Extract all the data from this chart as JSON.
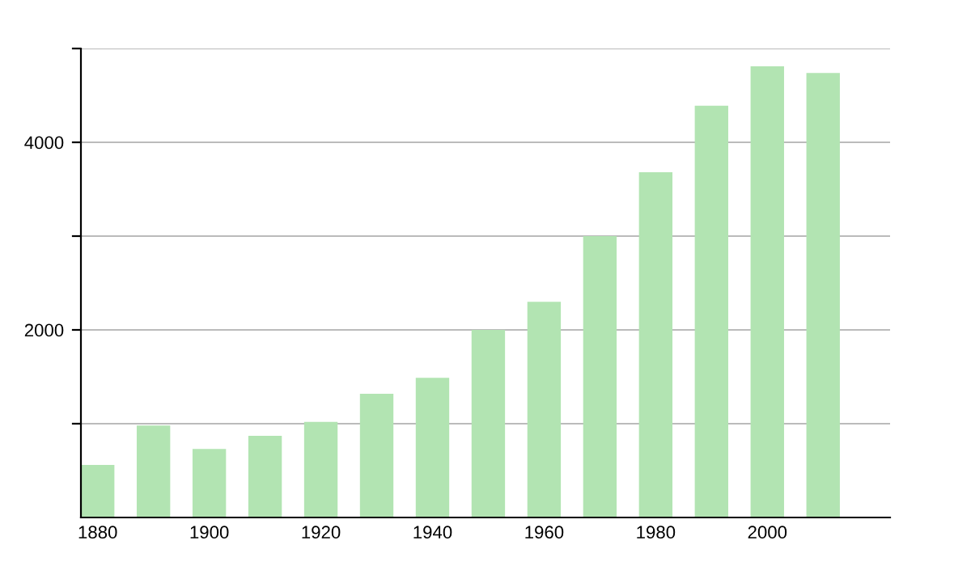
{
  "chart_data": {
    "type": "bar",
    "x": [
      1880,
      1890,
      1900,
      1910,
      1920,
      1930,
      1940,
      1950,
      1960,
      1970,
      1980,
      1990,
      2000,
      2010
    ],
    "values": [
      560,
      980,
      730,
      870,
      1020,
      1320,
      1490,
      2000,
      2300,
      3000,
      3680,
      4390,
      4810,
      4740
    ],
    "color": "#b2e4b2",
    "xlim": [
      1877,
      2022
    ],
    "xticks": [
      1880,
      1900,
      1920,
      1940,
      1960,
      1980,
      2000
    ],
    "ylim": [
      0,
      5000
    ],
    "yticks": [
      {
        "value": 1000,
        "label": null
      },
      2000,
      {
        "value": 3000,
        "label": null
      },
      4000,
      {
        "value": 5000,
        "label": null
      }
    ],
    "grid": "y",
    "legend": false
  }
}
